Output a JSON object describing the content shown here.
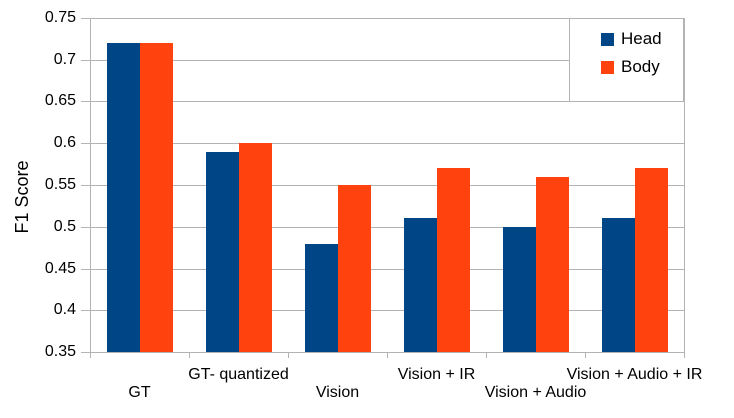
{
  "chart_data": {
    "type": "bar",
    "title": "",
    "xlabel": "",
    "ylabel": "F1 Score",
    "categories": [
      "GT",
      "GT- quantized",
      "Vision",
      "Vision + IR",
      "Vision + Audio",
      "Vision + Audio + IR"
    ],
    "series": [
      {
        "name": "Head",
        "color": "#004586",
        "values": [
          0.72,
          0.59,
          0.48,
          0.51,
          0.5,
          0.51
        ]
      },
      {
        "name": "Body",
        "color": "#ff420e",
        "values": [
          0.72,
          0.6,
          0.55,
          0.57,
          0.56,
          0.57
        ]
      }
    ],
    "ylim": [
      0.35,
      0.75
    ],
    "ytick_step": 0.05,
    "ytick_labels": [
      "0.75",
      "0.7",
      "0.65",
      "0.6",
      "0.55",
      "0.5",
      "0.45",
      "0.4",
      "0.35"
    ],
    "grid": true,
    "grid_color": "#b3b3b3",
    "axis_color": "#b3b3b3",
    "text_color": "#000000",
    "legend_position": "top-right",
    "legend_border_color": "#b3b3b3"
  }
}
